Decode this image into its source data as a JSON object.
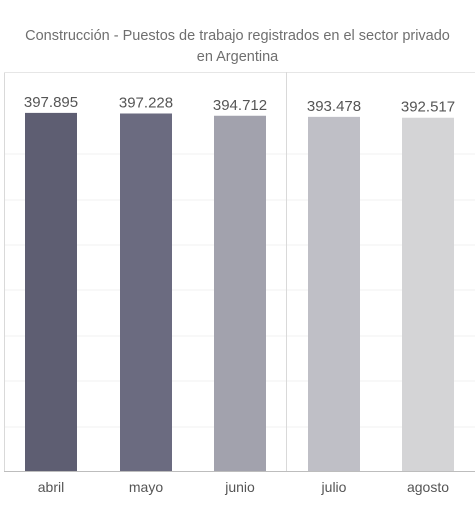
{
  "chart_data": {
    "type": "bar",
    "title_lines": [
      "Construcción - Puestos de trabajo registrados en el sector privado",
      "en Argentina"
    ],
    "categories": [
      "abril",
      "mayo",
      "junio",
      "julio",
      "agosto"
    ],
    "values": [
      397895,
      397228,
      394712,
      393478,
      392517
    ],
    "value_labels": [
      "397.895",
      "397.228",
      "394.712",
      "393.478",
      "392.517"
    ],
    "bar_colors": [
      "#5e5e72",
      "#6b6b80",
      "#a2a2ad",
      "#bfbfc6",
      "#d4d4d6"
    ],
    "ylim": [
      0,
      400000
    ],
    "grid": true,
    "xlabel": "",
    "ylabel": ""
  }
}
